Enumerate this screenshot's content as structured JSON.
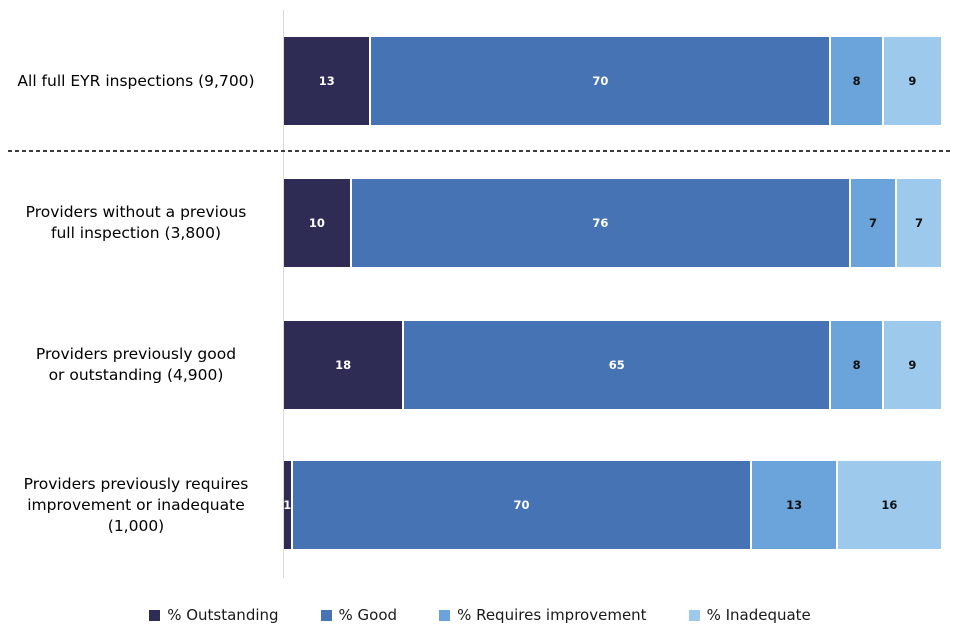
{
  "chart_data": {
    "type": "bar",
    "orientation": "horizontal",
    "stacked": true,
    "xlim": [
      0,
      100
    ],
    "grid": false,
    "legend_position": "bottom",
    "axis_color": "#d9d9d9",
    "categories": [
      "All full EYR inspections (9,700)",
      "Providers without a previous full inspection (3,800)",
      "Providers previously good or outstanding (4,900)",
      "Providers previously requires improvement or inadequate (1,000)"
    ],
    "category_label_lines": [
      [
        "All full EYR inspections (9,700)"
      ],
      [
        "Providers without a previous",
        "full inspection (3,800)"
      ],
      [
        "Providers previously good",
        "or outstanding (4,900)"
      ],
      [
        "Providers previously requires",
        "improvement or inadequate",
        "(1,000)"
      ]
    ],
    "series": [
      {
        "name": "% Outstanding",
        "color": "#2e2b55",
        "label_color": "#ffffff",
        "values": [
          13,
          10,
          18,
          1
        ]
      },
      {
        "name": "% Good",
        "color": "#4573b4",
        "label_color": "#ffffff",
        "values": [
          70,
          76,
          65,
          70
        ]
      },
      {
        "name": "% Requires improvement",
        "color": "#6ba4db",
        "label_color": "#111111",
        "values": [
          8,
          7,
          8,
          13
        ]
      },
      {
        "name": "% Inadequate",
        "color": "#9dc9ed",
        "label_color": "#111111",
        "values": [
          9,
          7,
          9,
          16
        ]
      }
    ],
    "annotations": {
      "dashed_separator_after_category": "All full EYR inspections (9,700)"
    }
  }
}
